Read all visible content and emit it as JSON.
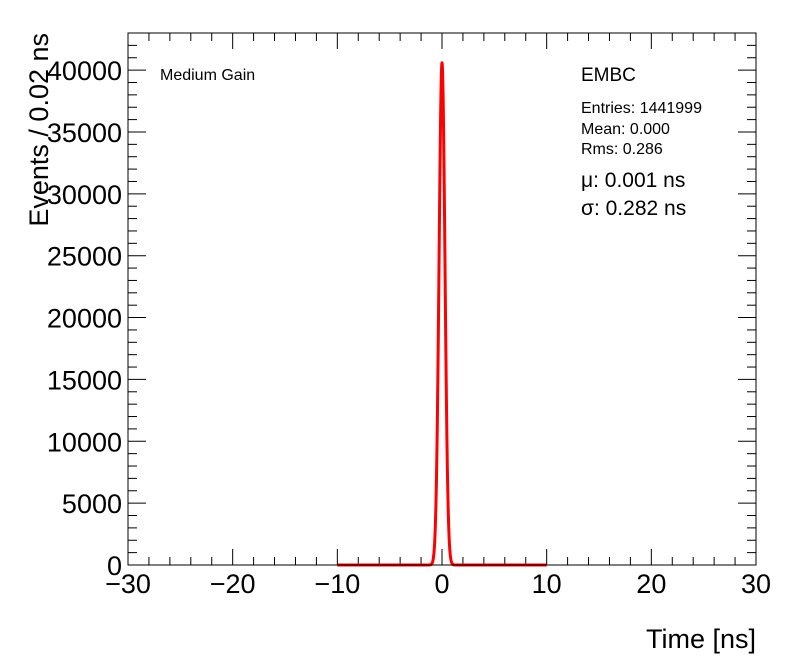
{
  "chart_data": {
    "type": "histogram",
    "xlabel": "Time [ns]",
    "ylabel": "Events / 0.02 ns",
    "xlim": [
      -30,
      30
    ],
    "ylim": [
      0,
      43000
    ],
    "x_ticks": [
      -30,
      -20,
      -10,
      0,
      10,
      20,
      30
    ],
    "y_ticks": [
      0,
      5000,
      10000,
      15000,
      20000,
      25000,
      30000,
      35000,
      40000
    ],
    "histogram": {
      "color": "#000000",
      "peak_x": 0.0,
      "peak_value": 40600,
      "sigma": 0.282
    },
    "fit": {
      "color": "#ff0000",
      "range": [
        -10,
        10
      ],
      "mu": 0.001,
      "sigma": 0.282,
      "amplitude": 40600
    },
    "annotations": {
      "gain_label": "Medium Gain",
      "detector_label": "EMBC",
      "entries": "Entries: 1441999",
      "mean": "Mean: 0.000",
      "rms": "Rms: 0.286",
      "mu_text": "μ: 0.001 ns",
      "sigma_text": "σ: 0.282 ns"
    },
    "grid": false
  }
}
